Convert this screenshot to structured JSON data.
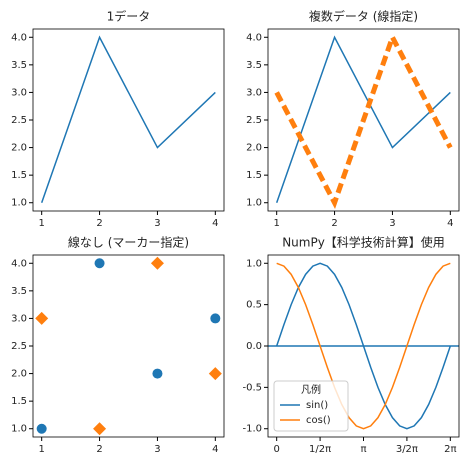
{
  "chart_data": [
    {
      "type": "line",
      "title": "1データ",
      "x": [
        1,
        2,
        3,
        4
      ],
      "series": [
        {
          "color": "#1f77b4",
          "linestyle": "solid",
          "linewidth": 1.5,
          "values": [
            1,
            4,
            2,
            3
          ]
        }
      ],
      "xlim": [
        0.85,
        4.15
      ],
      "ylim": [
        0.85,
        4.15
      ],
      "xticks": [
        1,
        2,
        3,
        4
      ],
      "yticks": [
        {
          "value": 1,
          "label": "1.0"
        },
        1.5,
        {
          "value": 2,
          "label": "2.0"
        },
        2.5,
        {
          "value": 3,
          "label": "3.0"
        },
        3.5,
        {
          "value": 4,
          "label": "4.0"
        }
      ]
    },
    {
      "type": "line",
      "title": "複数データ (線指定)",
      "x": [
        1,
        2,
        3,
        4
      ],
      "series": [
        {
          "color": "#1f77b4",
          "linestyle": "solid",
          "linewidth": 1.5,
          "values": [
            1,
            4,
            2,
            3
          ]
        },
        {
          "color": "#ff7f0e",
          "linestyle": "dashed",
          "linewidth": 5,
          "values": [
            3,
            1,
            4,
            2
          ]
        }
      ],
      "xlim": [
        0.85,
        4.15
      ],
      "ylim": [
        0.85,
        4.15
      ],
      "xticks": [
        1,
        2,
        3,
        4
      ],
      "yticks": [
        {
          "value": 1,
          "label": "1.0"
        },
        1.5,
        {
          "value": 2,
          "label": "2.0"
        },
        2.5,
        {
          "value": 3,
          "label": "3.0"
        },
        3.5,
        {
          "value": 4,
          "label": "4.0"
        }
      ]
    },
    {
      "type": "scatter",
      "title": "線なし (マーカー指定)",
      "x": [
        1,
        2,
        3,
        4
      ],
      "series": [
        {
          "color": "#1f77b4",
          "marker": "circle",
          "values": [
            1,
            4,
            2,
            3
          ]
        },
        {
          "color": "#ff7f0e",
          "marker": "diamond",
          "values": [
            3,
            1,
            4,
            2
          ]
        }
      ],
      "xlim": [
        0.85,
        4.15
      ],
      "ylim": [
        0.85,
        4.15
      ],
      "xticks": [
        1,
        2,
        3,
        4
      ],
      "yticks": [
        {
          "value": 1,
          "label": "1.0"
        },
        1.5,
        {
          "value": 2,
          "label": "2.0"
        },
        2.5,
        {
          "value": 3,
          "label": "3.0"
        },
        3.5,
        {
          "value": 4,
          "label": "4.0"
        }
      ]
    },
    {
      "type": "line",
      "title": "NumPy【科学技術計算】使用",
      "x": [
        0,
        0.262,
        0.524,
        0.785,
        1.047,
        1.309,
        1.571,
        1.833,
        2.094,
        2.356,
        2.618,
        2.88,
        3.142,
        3.403,
        3.665,
        3.927,
        4.189,
        4.451,
        4.712,
        4.974,
        5.236,
        5.498,
        5.76,
        6.021,
        6.283
      ],
      "series": [
        {
          "name": "sin()",
          "color": "#1f77b4",
          "linestyle": "solid",
          "linewidth": 1.5,
          "values": [
            0,
            0.259,
            0.5,
            0.707,
            0.866,
            0.966,
            1,
            0.966,
            0.866,
            0.707,
            0.5,
            0.259,
            0,
            -0.259,
            -0.5,
            -0.707,
            -0.866,
            -0.966,
            -1,
            -0.966,
            -0.866,
            -0.707,
            -0.5,
            -0.259,
            0
          ]
        },
        {
          "name": "cos()",
          "color": "#ff7f0e",
          "linestyle": "solid",
          "linewidth": 1.5,
          "values": [
            1,
            0.966,
            0.866,
            0.707,
            0.5,
            0.259,
            0,
            -0.259,
            -0.5,
            -0.707,
            -0.866,
            -0.966,
            -1,
            -0.966,
            -0.866,
            -0.707,
            -0.5,
            -0.259,
            0,
            0.259,
            0.5,
            0.707,
            0.866,
            0.966,
            1
          ]
        }
      ],
      "hline": {
        "value": 0,
        "color": "#1f77b4"
      },
      "legend": {
        "title": "凡例",
        "position": "lower left"
      },
      "xlim": [
        -0.314,
        6.597
      ],
      "ylim": [
        -1.1,
        1.1
      ],
      "xticks": [
        0,
        {
          "value": 1.571,
          "label": "1/2π"
        },
        {
          "value": 3.142,
          "label": "π"
        },
        {
          "value": 4.712,
          "label": "3/2π"
        },
        {
          "value": 6.283,
          "label": "2π"
        }
      ],
      "yticks": [
        {
          "value": -1,
          "label": "-1.0"
        },
        -0.5,
        {
          "value": 0,
          "label": "0.0"
        },
        0.5,
        {
          "value": 1,
          "label": "1.0"
        }
      ]
    }
  ]
}
